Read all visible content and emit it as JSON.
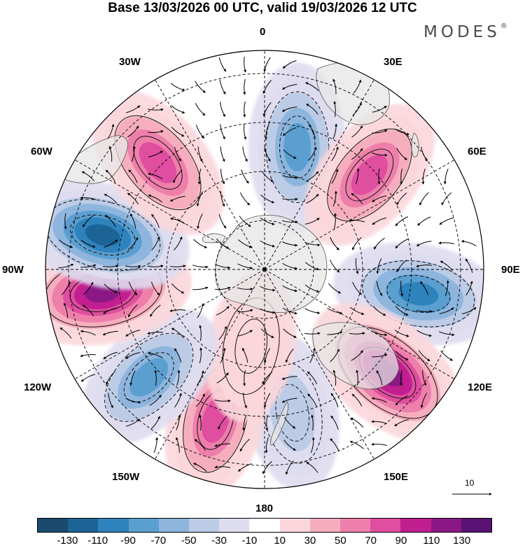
{
  "title": "Base 13/03/2026 00 UTC, valid 19/03/2026 12 UTC",
  "brand": {
    "name": "MODES",
    "mark": "®"
  },
  "longitude_labels": {
    "lon_0": "0",
    "lon_30e": "30E",
    "lon_60e": "60E",
    "lon_90e": "90E",
    "lon_120e": "120E",
    "lon_150e": "150E",
    "lon_180": "180",
    "lon_150w": "150W",
    "lon_120w": "120W",
    "lon_90w": "90W",
    "lon_60w": "60W",
    "lon_30w": "30W"
  },
  "reference_vector": {
    "label": "10"
  },
  "colorbar": {
    "colors": [
      "#1a4a6e",
      "#1d6496",
      "#2f83bd",
      "#5b9fd1",
      "#8db5dd",
      "#bccbe6",
      "#dedcef",
      "#ffffff",
      "#fbd7dc",
      "#f6aebe",
      "#ee7fab",
      "#df4e9f",
      "#c11f90",
      "#8b1884",
      "#5a1275"
    ],
    "ticks": [
      "-130",
      "-110",
      "-90",
      "-70",
      "-50",
      "-30",
      "-10",
      "10",
      "30",
      "50",
      "70",
      "90",
      "110",
      "130"
    ]
  },
  "anomaly_centers": [
    {
      "lon_deg": 15,
      "colat_deg": 52,
      "value": -85,
      "orient": 0
    },
    {
      "lon_deg": 48,
      "colat_deg": 58,
      "value": 75,
      "orient": 40
    },
    {
      "lon_deg": 99,
      "colat_deg": 64,
      "value": -95,
      "orient": 100
    },
    {
      "lon_deg": 130,
      "colat_deg": 66,
      "value": 115,
      "orient": 130
    },
    {
      "lon_deg": 169,
      "colat_deg": 60,
      "value": -45,
      "orient": 170
    },
    {
      "lon_deg": -162,
      "colat_deg": 65,
      "value": 70,
      "orient": 195
    },
    {
      "lon_deg": -170,
      "colat_deg": 32,
      "value": 25,
      "orient": 190
    },
    {
      "lon_deg": -133,
      "colat_deg": 65,
      "value": -75,
      "orient": 225
    },
    {
      "lon_deg": -98,
      "colat_deg": 67,
      "value": 120,
      "orient": 260
    },
    {
      "lon_deg": -78,
      "colat_deg": 68,
      "value": -115,
      "orient": 285
    },
    {
      "lon_deg": -45,
      "colat_deg": 62,
      "value": 85,
      "orient": 320
    }
  ]
}
